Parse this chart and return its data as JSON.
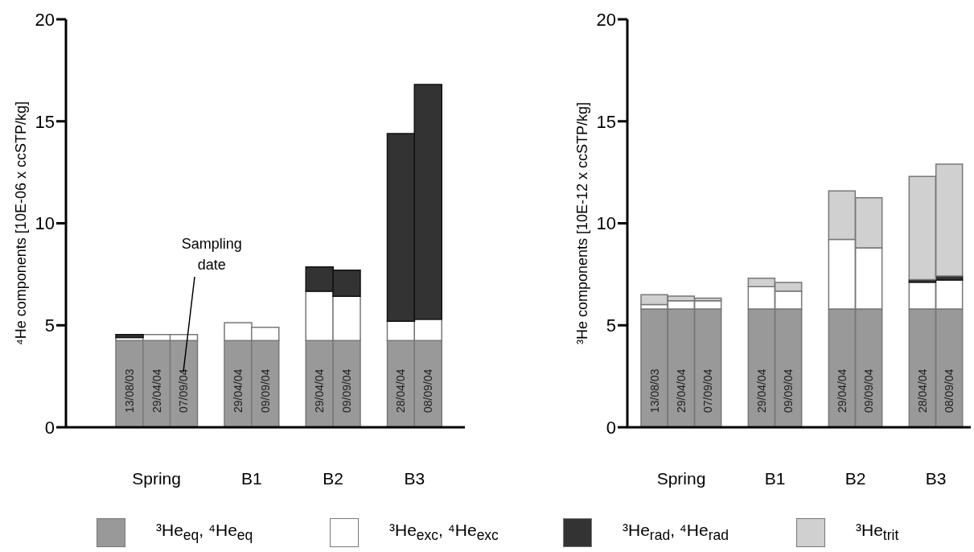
{
  "chart_data": [
    {
      "type": "bar",
      "stacked": true,
      "ylabel": "⁴He components [10E-06 x ccSTP/kg]",
      "categories": [
        "13/08/03",
        "29/04/04",
        "07/09/04",
        null,
        "29/04/04",
        "09/09/04",
        null,
        "29/04/04",
        "09/09/04",
        null,
        "28/04/04",
        "08/09/04"
      ],
      "ylim": [
        0,
        20
      ],
      "yticks": [
        0,
        5,
        10,
        15,
        20
      ],
      "series": [
        {
          "color": "#999999",
          "values": [
            4.25,
            4.25,
            4.25,
            null,
            4.25,
            4.25,
            null,
            4.25,
            4.25,
            null,
            4.25,
            4.25
          ]
        },
        {
          "color": "#ffffff",
          "values": [
            0.15,
            0.3,
            0.3,
            null,
            0.88,
            0.65,
            null,
            2.42,
            2.17,
            null,
            0.95,
            1.05
          ]
        },
        {
          "color": "#333333",
          "values": [
            0.15,
            null,
            null,
            null,
            null,
            null,
            null,
            1.19,
            1.28,
            null,
            9.2,
            11.5
          ]
        }
      ],
      "annotations": [
        "Spring",
        "B1",
        "B2",
        "B3",
        "Sampling date"
      ]
    },
    {
      "type": "bar",
      "stacked": true,
      "ylabel": "³He components [10E-12 x ccSTP/kg]",
      "categories": [
        "13/08/03",
        "29/04/04",
        "07/09/04",
        null,
        "29/04/04",
        "09/09/04",
        null,
        "29/04/04",
        "09/09/04",
        null,
        "28/04/04",
        "08/09/04"
      ],
      "ylim": [
        0,
        20
      ],
      "yticks": [
        0,
        5,
        10,
        15,
        20
      ],
      "legend": "bottom",
      "series": [
        {
          "name": "³He$_{eq}$, ⁴He$_{eq}$",
          "color": "#999999",
          "values": [
            5.8,
            5.8,
            5.8,
            null,
            5.8,
            5.8,
            null,
            5.8,
            5.8,
            null,
            5.8,
            5.8
          ]
        },
        {
          "name": "³He$_{exc}$, ⁴He$_{exc}$",
          "color": "#ffffff",
          "values": [
            0.22,
            0.4,
            0.4,
            null,
            1.09,
            0.88,
            null,
            3.41,
            3.0,
            null,
            1.31,
            1.42
          ]
        },
        {
          "name": "³He$_{rad}$, ⁴He$_{rad}$",
          "color": "#333333",
          "values": [
            null,
            null,
            null,
            null,
            null,
            null,
            null,
            null,
            null,
            null,
            0.13,
            0.2
          ]
        },
        {
          "name": "³He$_{trit}$",
          "color": "#d0d0d0",
          "values": [
            0.48,
            0.23,
            0.13,
            null,
            0.42,
            0.42,
            null,
            2.38,
            2.45,
            null,
            5.06,
            5.48
          ]
        }
      ],
      "annotations": [
        "Spring",
        "B1",
        "B2",
        "B3"
      ]
    }
  ]
}
